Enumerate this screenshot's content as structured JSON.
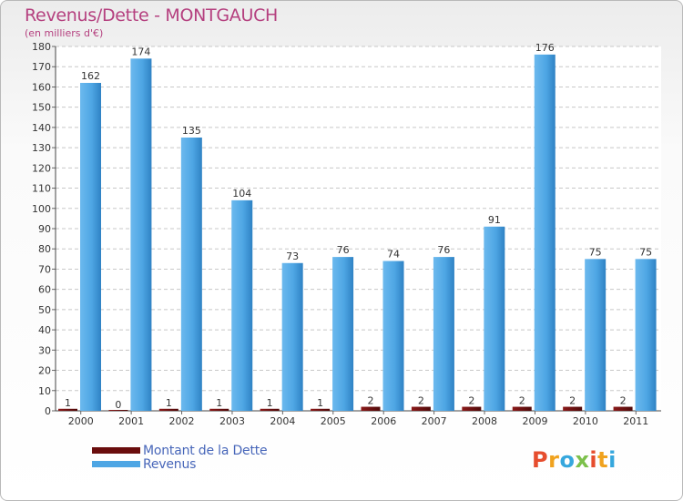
{
  "header": {
    "title": "Revenus/Dette - MONTGAUCH",
    "unit": "(en milliers d'€)"
  },
  "chart_data": {
    "type": "bar",
    "categories": [
      "2000",
      "2001",
      "2002",
      "2003",
      "2004",
      "2005",
      "2006",
      "2007",
      "2008",
      "2009",
      "2010",
      "2011"
    ],
    "series": [
      {
        "name": "Montant de la Dette",
        "values": [
          1,
          0,
          1,
          1,
          1,
          1,
          2,
          2,
          2,
          2,
          2,
          2
        ],
        "color": "#6a0d0d"
      },
      {
        "name": "Revenus",
        "values": [
          162,
          174,
          135,
          104,
          73,
          76,
          74,
          76,
          91,
          176,
          75,
          75
        ],
        "color": "#4ea6e4"
      }
    ],
    "ylim": [
      0,
      180
    ],
    "ytick_step": 10,
    "grid": true,
    "legend": "bottom-left"
  },
  "logo": {
    "letters": [
      "P",
      "r",
      "o",
      "x",
      "i",
      "t",
      "i"
    ],
    "colors": [
      "#e64d2e",
      "#f0a21e",
      "#36a7dd",
      "#7cc04b",
      "#e64d2e",
      "#f0a21e",
      "#36a7dd"
    ]
  }
}
